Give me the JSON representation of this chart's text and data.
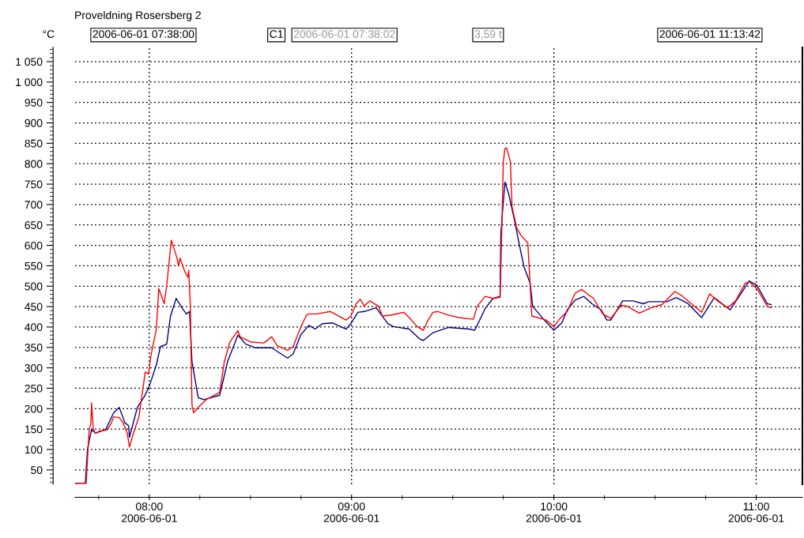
{
  "chart_data": {
    "type": "line",
    "title": "Proveldning Rosersberg 2",
    "ylabel": "°C",
    "annotations": [
      "2006-06-01 07:38:00",
      "C1",
      "2006-06-01 07:38:02",
      "3,59 t",
      "2006-06-01 11:13:42"
    ],
    "xlim": [
      "2006-06-01T07:38:00",
      "2006-06-01T11:13:42"
    ],
    "xticks": [
      {
        "value": "2006-06-01T08:00",
        "label": "08:00\n2006-06-01"
      },
      {
        "value": "2006-06-01T09:00",
        "label": "09:00\n2006-06-01"
      },
      {
        "value": "2006-06-01T10:00",
        "label": "10:00\n2006-06-01"
      },
      {
        "value": "2006-06-01T11:00",
        "label": "11:00\n2006-06-01"
      }
    ],
    "ylim": [
      15,
      1085
    ],
    "yticks": [
      50,
      100,
      150,
      200,
      250,
      300,
      350,
      400,
      450,
      500,
      550,
      600,
      650,
      700,
      750,
      800,
      850,
      900,
      950,
      {
        "value": 1000,
        "label": "1 000"
      },
      {
        "value": 1050,
        "label": "1 050"
      }
    ],
    "grid": true,
    "legend": false,
    "marker": "none",
    "line_style": "solid",
    "series": [
      {
        "color": "#ff0000",
        "x": [
          "2006-06-01T07:38:13",
          "2006-06-01T07:41:17",
          "2006-06-01T07:42:11",
          "2006-06-01T07:42:40",
          "2006-06-01T07:42:54",
          "2006-06-01T07:43:23",
          "2006-06-01T07:44:02",
          "2006-06-01T07:45:14",
          "2006-06-01T07:47:35",
          "2006-06-01T07:48:47",
          "2006-06-01T07:49:26",
          "2006-06-01T07:51:07",
          "2006-06-01T07:52:16",
          "2006-06-01T07:53:28",
          "2006-06-01T07:54:07",
          "2006-06-01T07:55:19",
          "2006-06-01T07:56:56",
          "2006-06-01T07:58:08",
          "2006-06-01T07:58:48",
          "2006-06-01T07:59:46",
          "2006-06-01T08:00:29",
          "2006-06-01T08:02:06",
          "2006-06-01T08:02:49",
          "2006-06-01T08:04:26",
          "2006-06-01T08:05:10",
          "2006-06-01T08:06:32",
          "2006-06-01T08:08:13",
          "2006-06-01T08:08:42",
          "2006-06-01T08:09:07",
          "2006-06-01T08:10:34",
          "2006-06-01T08:11:28",
          "2006-06-01T08:11:42",
          "2006-06-01T08:12:11",
          "2006-06-01T08:12:40",
          "2006-06-01T08:13:08",
          "2006-06-01T08:14:31",
          "2006-06-01T08:16:52",
          "2006-06-01T08:20:53",
          "2006-06-01T08:22:16",
          "2006-06-01T08:23:53",
          "2006-06-01T08:26:17",
          "2006-06-01T08:26:56",
          "2006-06-01T08:30:14",
          "2006-06-01T08:33:58",
          "2006-06-01T08:36:18",
          "2006-06-01T08:37:59",
          "2006-06-01T08:41:02",
          "2006-06-01T08:42:40",
          "2006-06-01T08:45:00",
          "2006-06-01T08:46:37",
          "2006-06-01T08:47:20",
          "2006-06-01T08:49:41",
          "2006-06-01T08:53:42",
          "2006-06-01T08:58:23",
          "2006-06-01T08:59:46",
          "2006-06-01T09:01:23",
          "2006-06-01T09:02:35",
          "2006-06-01T09:03:47",
          "2006-06-01T09:05:24",
          "2006-06-01T09:07:59",
          "2006-06-01T09:09:07",
          "2006-06-01T09:11:28",
          "2006-06-01T09:15:29",
          "2006-06-01T09:17:06",
          "2006-06-01T09:19:26",
          "2006-06-01T09:21:18",
          "2006-06-01T09:22:30",
          "2006-06-01T09:24:07",
          "2006-06-01T09:25:34",
          "2006-06-01T09:28:48",
          "2006-06-01T09:31:52",
          "2006-06-01T09:36:07",
          "2006-06-01T09:37:16",
          "2006-06-01T09:39:36",
          "2006-06-01T09:41:56",
          "2006-06-01T09:44:02",
          "2006-06-01T09:44:17",
          "2006-06-01T09:45:00",
          "2006-06-01T09:45:29",
          "2006-06-01T09:45:58",
          "2006-06-01T09:47:06",
          "2006-06-01T09:47:35",
          "2006-06-01T09:48:58",
          "2006-06-01T09:50:10",
          "2006-06-01T09:52:16",
          "2006-06-01T09:53:28",
          "2006-06-01T09:57:40",
          "2006-06-01T10:00:00",
          "2006-06-01T10:01:37",
          "2006-06-01T10:03:58",
          "2006-06-01T10:06:18",
          "2006-06-01T10:08:13",
          "2006-06-01T10:11:42",
          "2006-06-01T10:14:31",
          "2006-06-01T10:16:52",
          "2006-06-01T10:19:55",
          "2006-06-01T10:21:47",
          "2006-06-01T10:25:19",
          "2006-06-01T10:28:48",
          "2006-06-01T10:32:06",
          "2006-06-01T10:35:53",
          "2006-06-01T10:38:13",
          "2006-06-01T10:43:48",
          "2006-06-01T10:46:12",
          "2006-06-01T10:48:32",
          "2006-06-01T10:51:32",
          "2006-06-01T10:53:53",
          "2006-06-01T10:56:42",
          "2006-06-01T10:57:54",
          "2006-06-01T11:00:14",
          "2006-06-01T11:03:18",
          "2006-06-01T11:04:26"
        ],
        "values": [
          17,
          17,
          150,
          162,
          214,
          150,
          140,
          145,
          148,
          165,
          180,
          178,
          165,
          140,
          106,
          140,
          180,
          250,
          290,
          285,
          330,
          395,
          494,
          457,
          501,
          613,
          569,
          550,
          569,
          535,
          522,
          539,
          451,
          209,
          190,
          203,
          222,
          240,
          315,
          363,
          391,
          376,
          363,
          361,
          376,
          354,
          343,
          352,
          401,
          429,
          432,
          432,
          438,
          417,
          427,
          457,
          468,
          451,
          464,
          451,
          427,
          429,
          436,
          423,
          401,
          392,
          414,
          436,
          438,
          429,
          423,
          419,
          451,
          475,
          470,
          473,
          544,
          805,
          837,
          839,
          805,
          694,
          643,
          625,
          606,
          427,
          417,
          401,
          419,
          438,
          483,
          492,
          470,
          432,
          421,
          453,
          451,
          434,
          447,
          455,
          487,
          475,
          436,
          481,
          464,
          447,
          464,
          507,
          511,
          494,
          451,
          447
        ]
      },
      {
        "color": "#000080",
        "x": [
          "2006-06-01T07:38:13",
          "2006-06-01T07:41:02",
          "2006-06-01T07:41:42",
          "2006-06-01T07:42:54",
          "2006-06-01T07:44:02",
          "2006-06-01T07:47:06",
          "2006-06-01T07:49:26",
          "2006-06-01T07:51:07",
          "2006-06-01T07:52:44",
          "2006-06-01T07:53:53",
          "2006-06-01T07:54:07",
          "2006-06-01T07:56:28",
          "2006-06-01T07:58:37",
          "2006-06-01T08:00:00",
          "2006-06-01T08:02:06",
          "2006-06-01T08:03:18",
          "2006-06-01T08:05:10",
          "2006-06-01T08:06:18",
          "2006-06-01T08:07:59",
          "2006-06-01T08:09:50",
          "2006-06-01T08:11:02",
          "2006-06-01T08:11:56",
          "2006-06-01T08:12:40",
          "2006-06-01T08:14:31",
          "2006-06-01T08:16:12",
          "2006-06-01T08:20:53",
          "2006-06-01T08:23:13",
          "2006-06-01T08:26:17",
          "2006-06-01T08:28:37",
          "2006-06-01T08:31:37",
          "2006-06-01T08:36:18",
          "2006-06-01T08:41:02",
          "2006-06-01T08:42:40",
          "2006-06-01T08:45:00",
          "2006-06-01T08:47:20",
          "2006-06-01T08:49:12",
          "2006-06-01T08:51:18",
          "2006-06-01T08:54:22",
          "2006-06-01T08:58:23",
          "2006-06-01T08:59:46",
          "2006-06-01T09:01:52",
          "2006-06-01T09:03:47",
          "2006-06-01T09:07:16",
          "2006-06-01T09:10:48",
          "2006-06-01T09:12:25",
          "2006-06-01T09:17:06",
          "2006-06-01T09:20:10",
          "2006-06-01T09:21:18",
          "2006-06-01T09:24:07",
          "2006-06-01T09:28:48",
          "2006-06-01T09:34:55",
          "2006-06-01T09:36:32",
          "2006-06-01T09:39:36",
          "2006-06-01T09:41:56",
          "2006-06-01T09:44:02",
          "2006-06-01T09:44:17",
          "2006-06-01T09:45:29",
          "2006-06-01T09:46:37",
          "2006-06-01T09:48:18",
          "2006-06-01T09:49:55",
          "2006-06-01T09:51:07",
          "2006-06-01T09:52:59",
          "2006-06-01T09:53:42",
          "2006-06-01T09:56:56",
          "2006-06-01T10:00:00",
          "2006-06-01T10:02:20",
          "2006-06-01T10:03:58",
          "2006-06-01T10:06:18",
          "2006-06-01T10:08:53",
          "2006-06-01T10:11:17",
          "2006-06-01T10:14:02",
          "2006-06-01T10:15:43",
          "2006-06-01T10:16:52",
          "2006-06-01T10:20:24",
          "2006-06-01T10:23:28",
          "2006-06-01T10:26:28",
          "2006-06-01T10:28:08",
          "2006-06-01T10:33:32",
          "2006-06-01T10:36:18",
          "2006-06-01T10:39:50",
          "2006-06-01T10:43:48",
          "2006-06-01T10:47:35",
          "2006-06-01T10:52:16",
          "2006-06-01T10:55:34",
          "2006-06-01T10:57:54",
          "2006-06-01T11:00:14",
          "2006-06-01T11:03:18",
          "2006-06-01T11:04:26"
        ],
        "values": [
          17,
          18,
          102,
          149,
          140,
          149,
          190,
          203,
          166,
          158,
          130,
          203,
          231,
          255,
          307,
          352,
          358,
          427,
          470,
          445,
          432,
          438,
          315,
          227,
          222,
          233,
          315,
          380,
          358,
          349,
          349,
          324,
          334,
          382,
          404,
          395,
          408,
          410,
          395,
          408,
          436,
          438,
          447,
          408,
          401,
          395,
          371,
          367,
          386,
          399,
          395,
          392,
          445,
          470,
          475,
          632,
          755,
          725,
          662,
          595,
          548,
          507,
          451,
          419,
          392,
          410,
          442,
          466,
          475,
          457,
          442,
          417,
          417,
          464,
          464,
          457,
          462,
          462,
          472,
          457,
          423,
          472,
          442,
          483,
          513,
          502,
          457,
          455
        ]
      }
    ]
  }
}
